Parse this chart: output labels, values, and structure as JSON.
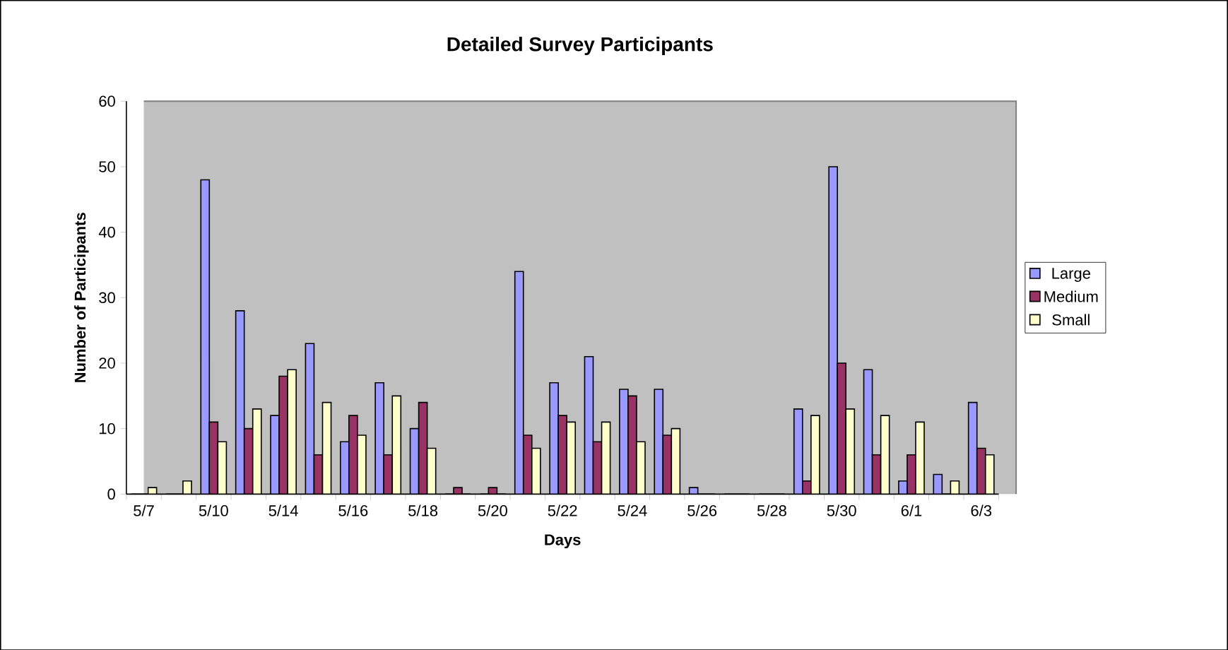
{
  "chart_data": {
    "type": "bar",
    "title": "Detailed Survey Participants",
    "xlabel": "Days",
    "ylabel": "Number of Participants",
    "categories": [
      "5/7",
      null,
      "5/10",
      null,
      "5/14",
      null,
      "5/16",
      null,
      "5/18",
      null,
      "5/20",
      null,
      "5/22",
      null,
      "5/24",
      null,
      "5/26",
      null,
      "5/28",
      null,
      "5/30",
      null,
      "6/1",
      null,
      "6/3"
    ],
    "series": [
      {
        "name": "Large",
        "color": "#9999ff",
        "values": [
          0,
          0,
          48,
          28,
          12,
          23,
          8,
          17,
          10,
          0,
          0,
          34,
          17,
          21,
          16,
          16,
          1,
          0,
          0,
          13,
          50,
          19,
          2,
          3,
          14
        ]
      },
      {
        "name": "Medium",
        "color": "#993366",
        "values": [
          0,
          0,
          11,
          10,
          18,
          6,
          12,
          6,
          14,
          1,
          1,
          9,
          12,
          8,
          15,
          9,
          0,
          0,
          0,
          2,
          20,
          6,
          6,
          0,
          7
        ]
      },
      {
        "name": "Small",
        "color": "#ffffcc",
        "values": [
          1,
          2,
          8,
          13,
          19,
          14,
          9,
          15,
          7,
          0,
          0,
          7,
          11,
          11,
          8,
          10,
          0,
          0,
          0,
          12,
          13,
          12,
          11,
          2,
          6
        ]
      }
    ],
    "ylim": [
      0,
      60
    ],
    "yticks": [
      0,
      10,
      20,
      30,
      40,
      50,
      60
    ],
    "grid": false,
    "legend": "right"
  }
}
